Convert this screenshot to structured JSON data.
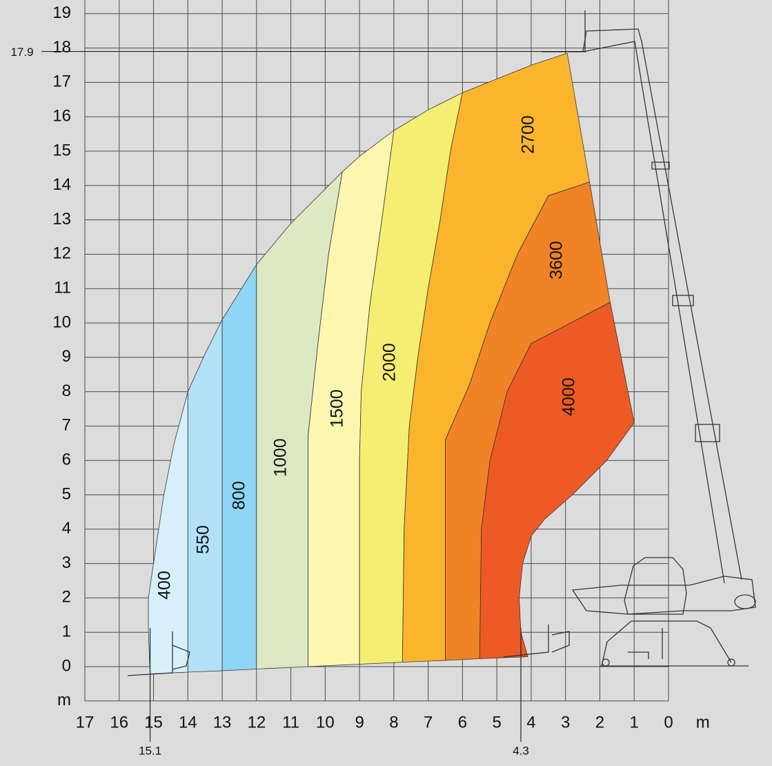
{
  "chart_data": {
    "type": "load-chart",
    "xlim": [
      17,
      0
    ],
    "ylim": [
      -1,
      19
    ],
    "xticks": [
      17,
      16,
      15,
      14,
      13,
      12,
      11,
      10,
      9,
      8,
      7,
      6,
      5,
      4,
      3,
      2,
      1,
      0,
      {
        "value": -1,
        "label": "m"
      }
    ],
    "yticks": [
      {
        "value": -1,
        "label": "m"
      },
      0,
      1,
      2,
      3,
      4,
      5,
      6,
      7,
      8,
      9,
      10,
      11,
      12,
      13,
      14,
      15,
      16,
      17,
      18,
      19
    ],
    "grid": true,
    "ref_y": [
      17.9
    ],
    "ref_x": [
      15.1,
      4.3
    ],
    "zones": [
      {
        "capacity": 400,
        "color": "#d6effb",
        "x": [
          15.1,
          15.15,
          15.15,
          15.0,
          14.7,
          14.4,
          14.0,
          14.0
        ],
        "y": [
          -0.21,
          1,
          2,
          3,
          5,
          6.5,
          8,
          -0.16
        ]
      },
      {
        "capacity": 550,
        "color": "#b3e1f7",
        "x": [
          14.0,
          13.5,
          13.0,
          13.0,
          14.0
        ],
        "y": [
          8,
          9.1,
          10.1,
          -0.12,
          -0.16
        ]
      },
      {
        "capacity": 800,
        "color": "#8dd6f5",
        "x": [
          13.0,
          12.5,
          12.0,
          12.0,
          13.0
        ],
        "y": [
          10.1,
          10.9,
          11.7,
          -0.07,
          -0.12
        ]
      },
      {
        "capacity": 1000,
        "color": "#dce9c3",
        "x": [
          12.0,
          11.0,
          10.0,
          9.5,
          9.9,
          10.2,
          10.5,
          10.5,
          12.0
        ],
        "y": [
          11.7,
          12.9,
          13.9,
          14.4,
          12,
          9.5,
          6.7,
          0.0,
          -0.07
        ]
      },
      {
        "capacity": 1500,
        "color": "#fdf6b0",
        "x": [
          9.5,
          9.0,
          8.0,
          8.35,
          8.7,
          8.95,
          9.0,
          9.0,
          10.5,
          10.5,
          10.2,
          9.9
        ],
        "y": [
          14.4,
          14.85,
          15.6,
          13,
          10.5,
          8,
          6,
          0.07,
          0.0,
          6.7,
          9.5,
          12
        ]
      },
      {
        "capacity": 2000,
        "color": "#f6ee72",
        "x": [
          8.0,
          7.0,
          6.0,
          6.35,
          6.65,
          7.0,
          7.3,
          7.55,
          7.7,
          7.75,
          9.0,
          9.0,
          8.95,
          8.7,
          8.35
        ],
        "y": [
          15.6,
          16.2,
          16.7,
          15,
          13,
          11,
          9,
          7,
          4,
          0.13,
          0.07,
          6,
          8,
          10.5,
          13
        ]
      },
      {
        "capacity": 2700,
        "color": "#fbb52d",
        "x": [
          6.0,
          5.0,
          4.0,
          2.95,
          2.3,
          3.5,
          4.4,
          5.2,
          5.8,
          6.5,
          6.5,
          7.75,
          7.7,
          7.55,
          7.3,
          7.0,
          6.65,
          6.35
        ],
        "y": [
          16.7,
          17.1,
          17.5,
          17.85,
          14.1,
          13.7,
          12,
          10,
          8.2,
          6.6,
          0.18,
          0.13,
          4,
          7,
          9,
          11,
          13,
          15
        ]
      },
      {
        "capacity": 3600,
        "color": "#f08326",
        "x": [
          2.3,
          1.7,
          4.0,
          4.7,
          5.2,
          5.45,
          5.5,
          6.5,
          6.5,
          5.8,
          5.2,
          4.4,
          3.5
        ],
        "y": [
          14.1,
          10.6,
          9.4,
          8,
          6,
          4,
          0.23,
          0.18,
          6.6,
          8.2,
          10,
          12,
          13.7
        ]
      },
      {
        "capacity": 4000,
        "color": "#ee5a25",
        "x": [
          1.7,
          1.0,
          1.8,
          2.8,
          3.6,
          4.0,
          4.25,
          4.35,
          4.3,
          4.1,
          5.5,
          5.45,
          5.2,
          4.7,
          4.0
        ],
        "y": [
          10.6,
          7.1,
          6,
          5,
          4.3,
          3.8,
          3,
          2,
          1.0,
          0.29,
          0.23,
          4,
          6,
          8,
          9.4
        ]
      }
    ]
  }
}
